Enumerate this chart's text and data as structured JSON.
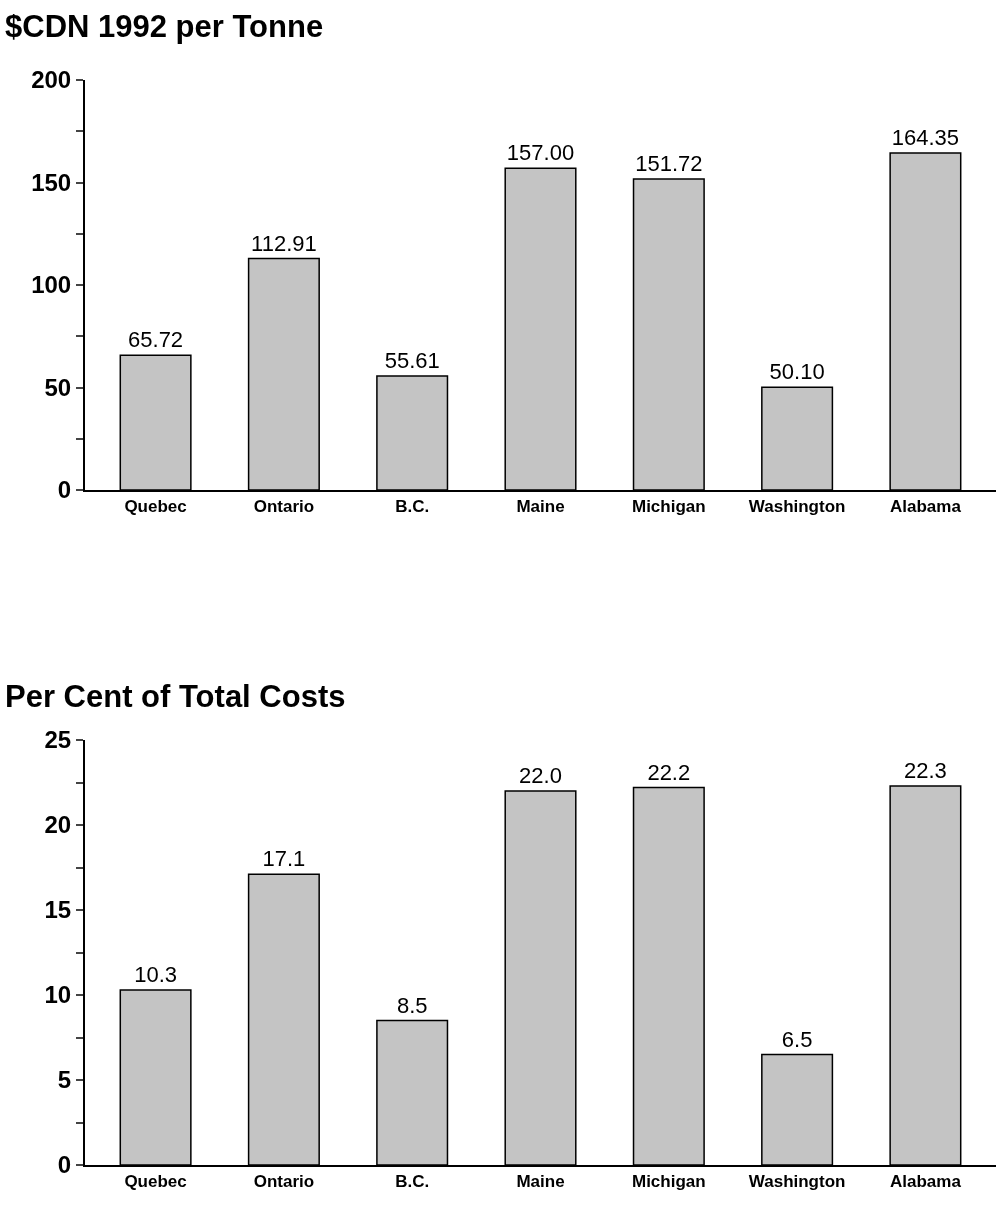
{
  "chart_data": [
    {
      "type": "bar",
      "title": "$CDN 1992 per Tonne",
      "categories": [
        "Quebec",
        "Ontario",
        "B.C.",
        "Maine",
        "Michigan",
        "Washington",
        "Alabama"
      ],
      "values": [
        65.72,
        112.91,
        55.61,
        157.0,
        151.72,
        50.1,
        164.35
      ],
      "value_labels": [
        "65.72",
        "112.91",
        "55.61",
        "157.00",
        "151.72",
        "50.10",
        "164.35"
      ],
      "color": "#c4c4c4",
      "ylim": [
        0,
        200
      ],
      "yticks": [
        0,
        {
          "value": 25,
          "label": null
        },
        50,
        {
          "value": 75,
          "label": null
        },
        100,
        {
          "value": 125,
          "label": null
        },
        150,
        {
          "value": 175,
          "label": null
        },
        200
      ],
      "grid": false,
      "legend": false
    },
    {
      "type": "bar",
      "title": "Per Cent of Total Costs",
      "categories": [
        "Quebec",
        "Ontario",
        "B.C.",
        "Maine",
        "Michigan",
        "Washington",
        "Alabama"
      ],
      "values": [
        10.3,
        17.1,
        8.5,
        22.0,
        22.2,
        6.5,
        22.3
      ],
      "value_labels": [
        "10.3",
        "17.1",
        "8.5",
        "22.0",
        "22.2",
        "6.5",
        "22.3"
      ],
      "color": "#c4c4c4",
      "ylim": [
        0,
        25
      ],
      "yticks": [
        0,
        {
          "value": 2.5,
          "label": null
        },
        5,
        {
          "value": 7.5,
          "label": null
        },
        10,
        {
          "value": 12.5,
          "label": null
        },
        15,
        {
          "value": 17.5,
          "label": null
        },
        20,
        {
          "value": 22.5,
          "label": null
        },
        25
      ],
      "grid": false,
      "legend": false
    }
  ]
}
